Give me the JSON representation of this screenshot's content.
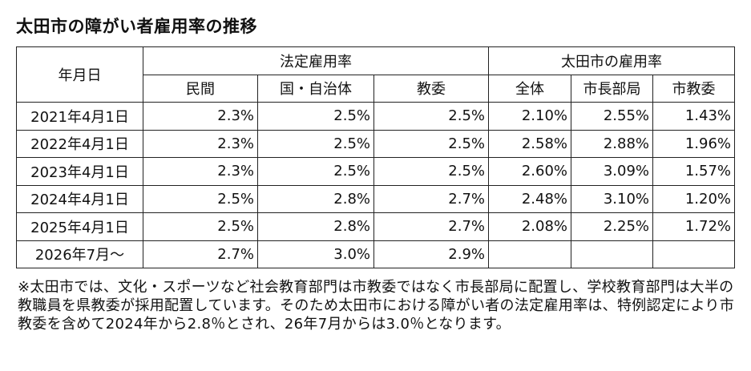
{
  "title": "太田市の障がい者雇用率の推移",
  "table": {
    "header_date": "年月日",
    "group_legal": "法定雇用率",
    "group_city": "太田市の雇用率",
    "subheaders": [
      "民間",
      "国・自治体",
      "教委",
      "全体",
      "市長部局",
      "市教委"
    ],
    "rows": [
      {
        "date": "2021年4月1日",
        "values": [
          "2.3%",
          "2.5%",
          "2.5%",
          "2.10%",
          "2.55%",
          "1.43%"
        ]
      },
      {
        "date": "2022年4月1日",
        "values": [
          "2.3%",
          "2.5%",
          "2.5%",
          "2.58%",
          "2.88%",
          "1.96%"
        ]
      },
      {
        "date": "2023年4月1日",
        "values": [
          "2.3%",
          "2.5%",
          "2.5%",
          "2.60%",
          "3.09%",
          "1.57%"
        ]
      },
      {
        "date": "2024年4月1日",
        "values": [
          "2.5%",
          "2.8%",
          "2.7%",
          "2.48%",
          "3.10%",
          "1.20%"
        ]
      },
      {
        "date": "2025年4月1日",
        "values": [
          "2.5%",
          "2.8%",
          "2.7%",
          "2.08%",
          "2.25%",
          "1.72%"
        ]
      },
      {
        "date": "2026年7月～",
        "values": [
          "2.7%",
          "3.0%",
          "2.9%",
          "",
          "",
          ""
        ]
      }
    ]
  },
  "note": "※太田市では、文化・スポーツなど社会教育部門は市教委ではなく市長部局に配置し、学校教育部門は大半の教職員を県教委が採用配置しています。そのため太田市における障がい者の法定雇用率は、特例認定により市教委を含めて2024年から2.8％とされ、26年7月からは3.0％となります。"
}
